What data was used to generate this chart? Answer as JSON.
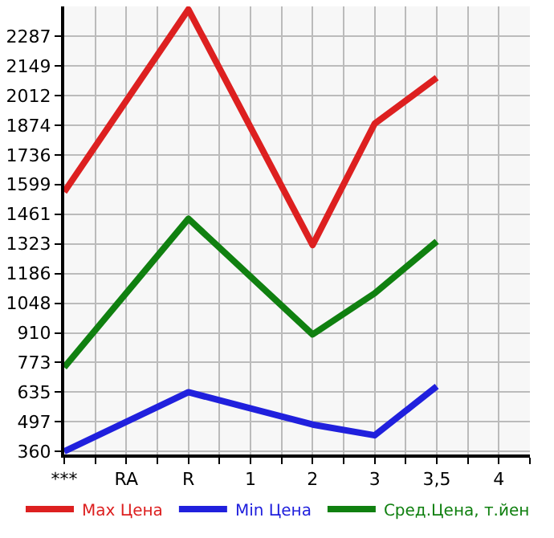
{
  "chart_data": {
    "type": "line",
    "categories": [
      "***",
      "RA",
      "R",
      "1",
      "2",
      "3",
      "3,5",
      "4"
    ],
    "series": [
      {
        "name": "Max Цена",
        "color": "#dd2020",
        "values": [
          1564,
          null,
          2411,
          null,
          1318,
          1881,
          2094,
          null
        ]
      },
      {
        "name": "Min Цена",
        "color": "#2020dd",
        "values": [
          360,
          null,
          635,
          null,
          485,
          435,
          662,
          null
        ]
      },
      {
        "name": "Сред.Цена, т.йен",
        "color": "#108010",
        "values": [
          750,
          null,
          1440,
          null,
          903,
          1094,
          1335,
          null
        ]
      }
    ],
    "ylim": [
      346,
      2425
    ],
    "yticks": [
      360,
      497,
      635,
      773,
      910,
      1048,
      1186,
      1323,
      1461,
      1599,
      1736,
      1874,
      2012,
      2149,
      2287
    ],
    "grid": true,
    "legend": "bottom",
    "marker": "none",
    "line_style": "solid"
  }
}
